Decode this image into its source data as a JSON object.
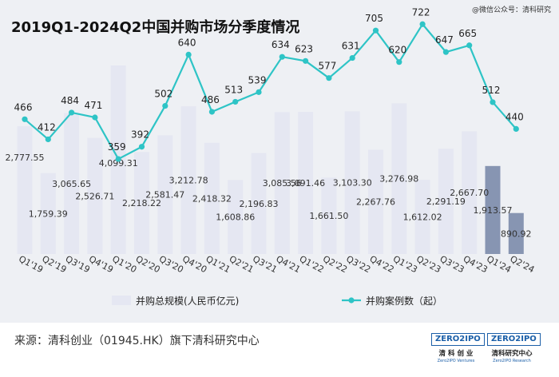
{
  "header": {
    "title": "2019Q1-2024Q2中国并购市场分季度情况",
    "watermark": "@微信公众号：清科研究"
  },
  "chart_data": {
    "type": "bar+line",
    "title": "2019Q1-2024Q2中国并购市场分季度情况",
    "categories": [
      "Q1'19",
      "Q2'19",
      "Q3'19",
      "Q4'19",
      "Q1'20",
      "Q2'20",
      "Q3'20",
      "Q4'20",
      "Q1'21",
      "Q2'21",
      "Q3'21",
      "Q4'21",
      "Q1'22",
      "Q2'22",
      "Q3'22",
      "Q4'22",
      "Q1'23",
      "Q2'23",
      "Q3'23",
      "Q4'23",
      "Q1'24",
      "Q2'24"
    ],
    "series": [
      {
        "name": "并购总规模(人民币亿元)",
        "type": "bar",
        "axis": "left",
        "values": [
          2777.55,
          1759.39,
          3065.65,
          2526.71,
          4099.31,
          2218.22,
          2581.47,
          3212.78,
          2418.32,
          1608.86,
          2196.83,
          3085.56,
          3091.46,
          1661.5,
          3103.3,
          2267.76,
          3276.98,
          1612.02,
          2291.19,
          2667.7,
          1913.57,
          890.92
        ],
        "labels": [
          "2,777.55",
          "1,759.39",
          "3,065.65",
          "2,526.71",
          "4,099.31",
          "2,218.22",
          "2,581.47",
          "3,212.78",
          "2,418.32",
          "1,608.86",
          "2,196.83",
          "3,085.56",
          "3,091.46",
          "1,661.50",
          "3,103.30",
          "2,267.76",
          "3,276.98",
          "1,612.02",
          "2,291.19",
          "2,667.70",
          "1,913.57",
          "890.92"
        ],
        "colors": {
          "normal": "#e5e7f2",
          "highlight": "#8795b2"
        }
      },
      {
        "name": "并购案例数（起）",
        "type": "line",
        "axis": "right",
        "values": [
          466,
          412,
          484,
          471,
          359,
          392,
          502,
          640,
          486,
          513,
          539,
          634,
          623,
          577,
          631,
          705,
          620,
          722,
          647,
          665,
          512,
          440
        ],
        "color": "#2ec4c6"
      }
    ],
    "highlighted_categories": [
      "Q1'24",
      "Q2'24"
    ],
    "bar_ylim": [
      0,
      4300
    ],
    "line_ylim": [
      0,
      900
    ],
    "legend_position": "bottom"
  },
  "footer": {
    "source": "来源：清科创业（01945.HK）旗下清科研究中心",
    "logo1": {
      "box": "ZERO2IPO",
      "cn": "清 科 创 业",
      "en": "Zero2IPO Ventures"
    },
    "logo2": {
      "box": "ZERO2IPO",
      "cn": "清科研究中心",
      "en": "Zero2IPO Research"
    }
  }
}
